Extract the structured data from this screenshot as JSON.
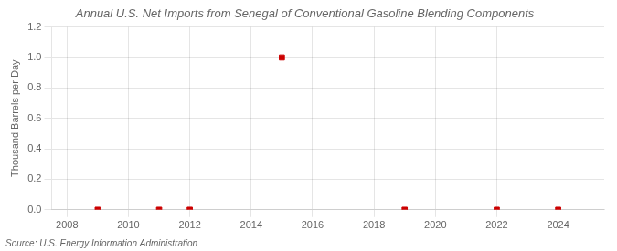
{
  "chart_data": {
    "type": "scatter",
    "title": "Annual U.S. Net Imports from Senegal of Conventional Gasoline Blending Components",
    "ylabel": "Thousand Barrels per Day",
    "source": "Source: U.S. Energy Information Administration",
    "x": [
      2009,
      2011,
      2012,
      2015,
      2019,
      2022,
      2024
    ],
    "values": [
      0.0,
      0.0,
      0.0,
      1.0,
      0.0,
      0.0,
      0.0
    ],
    "color": "#cc0000",
    "marker": "square",
    "xlim": [
      2007.5,
      2025.5
    ],
    "ylim": [
      0.0,
      1.2
    ],
    "xticks": [
      2008,
      2010,
      2012,
      2014,
      2016,
      2018,
      2020,
      2022,
      2024
    ],
    "yticks": [
      {
        "value": 0.0,
        "label": "0.0"
      },
      0.2,
      0.4,
      0.6,
      0.8,
      {
        "value": 1.0,
        "label": "1.0"
      },
      1.2
    ],
    "grid": true
  }
}
